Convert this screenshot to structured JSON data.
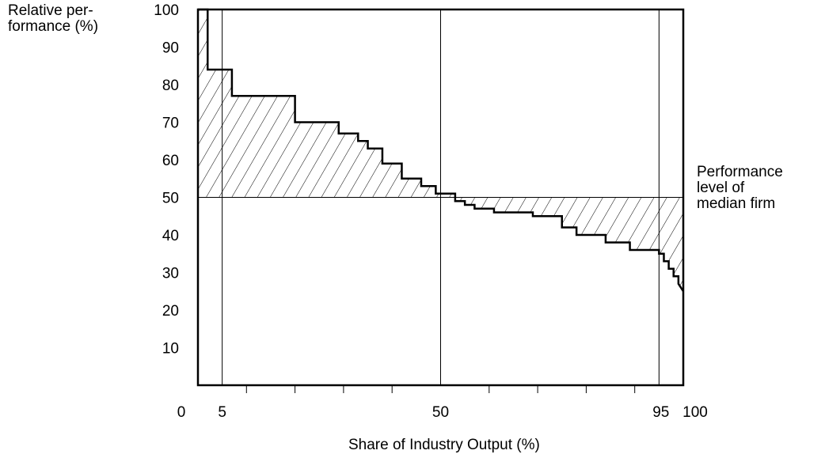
{
  "chart_data": {
    "type": "line",
    "ylabel_lines": [
      "Relative per-",
      "formance (%)"
    ],
    "xlabel": "Share of Industry Output (%)",
    "annotation_lines": [
      "Performance",
      "level of",
      "median firm"
    ],
    "xlim": [
      0,
      100
    ],
    "ylim": [
      0,
      100
    ],
    "x_tick_labels": [
      "0",
      "5",
      "50",
      "95",
      "100"
    ],
    "x_tick_label_values": [
      0,
      5,
      50,
      95,
      100
    ],
    "x_minor_ticks": [
      10,
      20,
      30,
      40,
      60,
      70,
      80,
      90
    ],
    "y_ticks": [
      10,
      20,
      30,
      40,
      50,
      60,
      70,
      80,
      90,
      100
    ],
    "y_tick_labels": [
      "10",
      "20",
      "30",
      "40",
      "50",
      "60",
      "70",
      "80",
      "90",
      "100"
    ],
    "median_level": 50,
    "vertical_markers": [
      5,
      50,
      95
    ],
    "series": [
      {
        "x": [
          0,
          2,
          2,
          7,
          7,
          20,
          20,
          29,
          29,
          33,
          33,
          35,
          35,
          38,
          38,
          42,
          42,
          46,
          46,
          49,
          49,
          53,
          53,
          55,
          55,
          57,
          57,
          61,
          61,
          69,
          69,
          75,
          75,
          78,
          78,
          84,
          84,
          89,
          89,
          95,
          95,
          96,
          96,
          97,
          97,
          98,
          98,
          99,
          99,
          100
        ],
        "y": [
          100,
          100,
          84,
          84,
          77,
          77,
          70,
          70,
          67,
          67,
          65,
          65,
          63,
          63,
          59,
          59,
          55,
          55,
          53,
          53,
          51,
          51,
          49,
          49,
          48,
          48,
          47,
          47,
          46,
          46,
          45,
          45,
          42,
          42,
          40,
          40,
          38,
          38,
          36,
          36,
          35,
          35,
          33,
          33,
          31,
          31,
          29,
          29,
          27,
          25
        ]
      }
    ]
  }
}
